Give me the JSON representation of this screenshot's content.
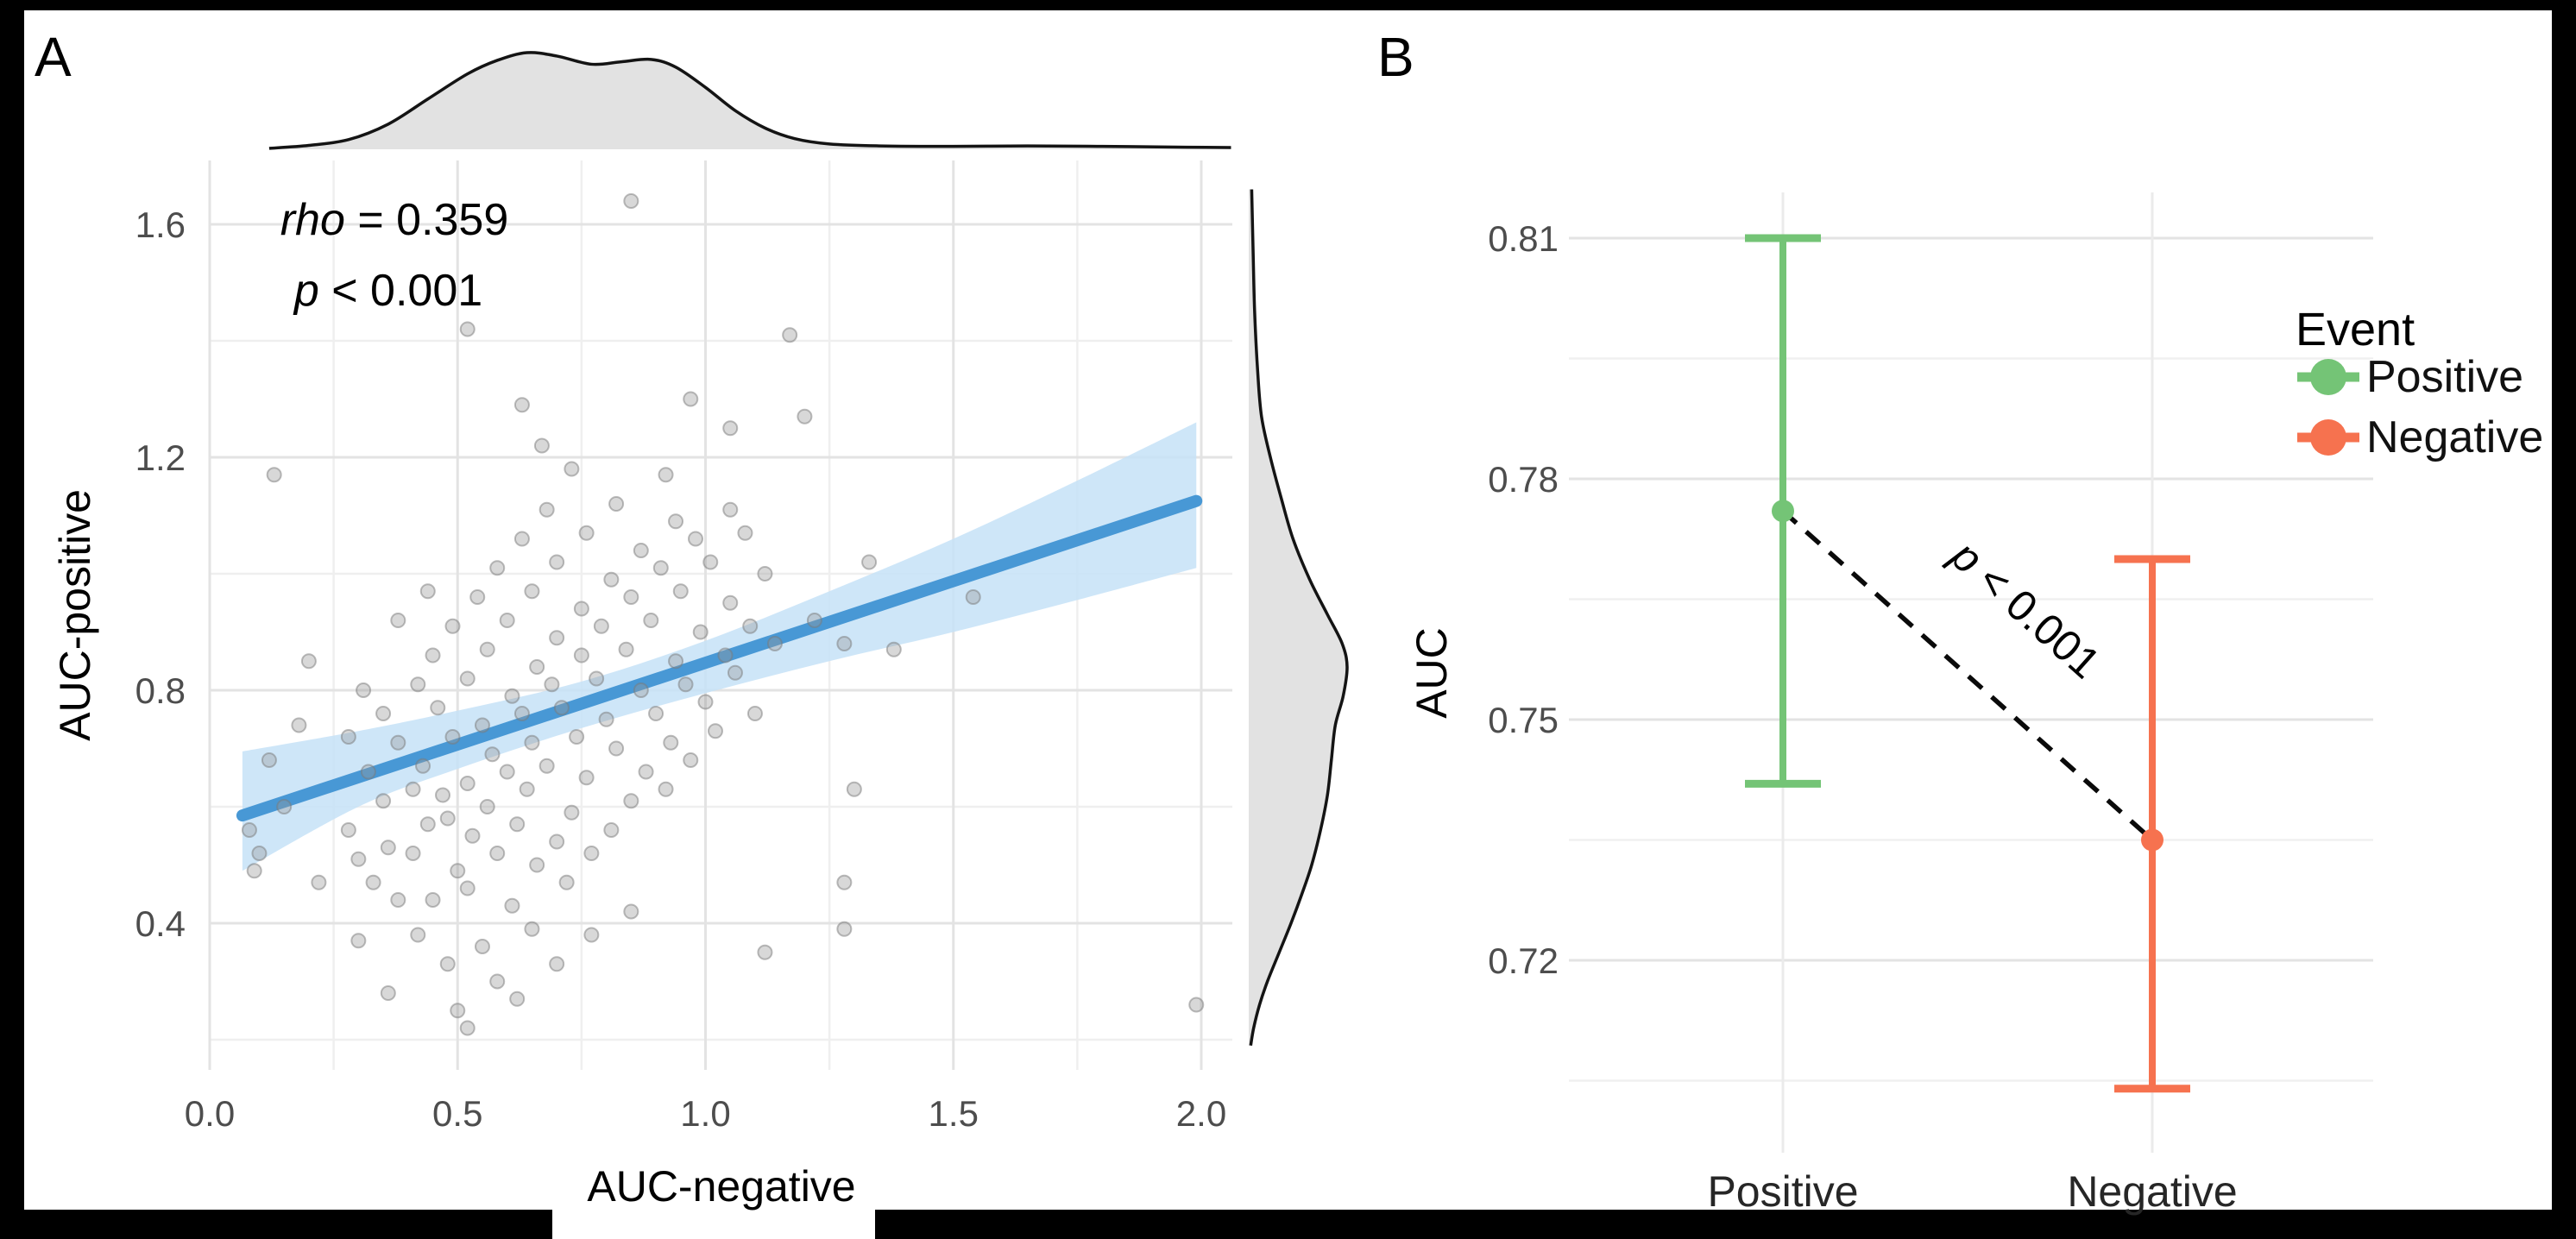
{
  "figure": {
    "background": "#ffffff",
    "frame_color": "#000000"
  },
  "chart_data": [
    {
      "panel_label": "A",
      "type": "scatter",
      "xlabel": "AUC-negative",
      "ylabel": "AUC-positive",
      "annotation": {
        "stat_italic": "rho",
        "stat_text": " = 0.359",
        "p_italic": "p",
        "p_text": " < 0.001"
      },
      "xlim": [
        0,
        2.06
      ],
      "ylim": [
        0.15,
        1.71
      ],
      "xticks": [
        0,
        0.5,
        1.0,
        1.5,
        2.0
      ],
      "xtick_labels": [
        "0.0",
        "0.5",
        "1.0",
        "1.5",
        "2.0"
      ],
      "xminor": [
        0.25,
        0.75,
        1.25,
        1.75
      ],
      "yticks": [
        0.4,
        0.8,
        1.2,
        1.6
      ],
      "ytick_labels": [
        "0.4",
        "0.8",
        "1.2",
        "1.6"
      ],
      "yminor": [
        0.2,
        0.6,
        1.0,
        1.4
      ],
      "grid": "on",
      "marginal_densities": "top and right, gray filled",
      "colors": {
        "point": "#999999",
        "point_stroke": "#7a7a7a",
        "line": "#4898D5",
        "band": "#C5E2F7",
        "density_fill": "#E0E0E0",
        "density_stroke": "#141414",
        "grid_major": "#E3E3E3",
        "grid_minor": "#EFEFEF"
      },
      "smooth": {
        "x": [
          0.066,
          1.99
        ],
        "y": [
          0.585,
          1.125
        ]
      },
      "band": {
        "x": [
          0.066,
          0.3,
          0.5,
          0.75,
          1.0,
          1.25,
          1.5,
          1.75,
          1.99
        ],
        "upper": [
          0.695,
          0.73,
          0.765,
          0.815,
          0.885,
          0.97,
          1.06,
          1.16,
          1.26
        ],
        "lower": [
          0.49,
          0.6,
          0.665,
          0.735,
          0.795,
          0.85,
          0.9,
          0.955,
          1.01
        ]
      },
      "x_density": [
        [
          0.12,
          0.01
        ],
        [
          0.2,
          0.04
        ],
        [
          0.28,
          0.1
        ],
        [
          0.36,
          0.26
        ],
        [
          0.44,
          0.52
        ],
        [
          0.52,
          0.78
        ],
        [
          0.58,
          0.92
        ],
        [
          0.64,
          1.0
        ],
        [
          0.7,
          0.965
        ],
        [
          0.77,
          0.88
        ],
        [
          0.83,
          0.905
        ],
        [
          0.89,
          0.93
        ],
        [
          0.94,
          0.85
        ],
        [
          1.0,
          0.64
        ],
        [
          1.06,
          0.4
        ],
        [
          1.12,
          0.22
        ],
        [
          1.18,
          0.11
        ],
        [
          1.25,
          0.055
        ],
        [
          1.35,
          0.035
        ],
        [
          1.5,
          0.03
        ],
        [
          1.65,
          0.035
        ],
        [
          1.8,
          0.03
        ],
        [
          1.95,
          0.022
        ],
        [
          2.06,
          0.018
        ]
      ],
      "y_density": [
        [
          1.66,
          0.03
        ],
        [
          1.55,
          0.045
        ],
        [
          1.45,
          0.06
        ],
        [
          1.35,
          0.09
        ],
        [
          1.27,
          0.13
        ],
        [
          1.2,
          0.22
        ],
        [
          1.13,
          0.33
        ],
        [
          1.06,
          0.45
        ],
        [
          0.99,
          0.62
        ],
        [
          0.93,
          0.8
        ],
        [
          0.88,
          0.95
        ],
        [
          0.84,
          1.0
        ],
        [
          0.79,
          0.96
        ],
        [
          0.74,
          0.88
        ],
        [
          0.68,
          0.84
        ],
        [
          0.62,
          0.8
        ],
        [
          0.56,
          0.73
        ],
        [
          0.5,
          0.64
        ],
        [
          0.45,
          0.54
        ],
        [
          0.4,
          0.43
        ],
        [
          0.35,
          0.31
        ],
        [
          0.3,
          0.19
        ],
        [
          0.26,
          0.11
        ],
        [
          0.22,
          0.05
        ],
        [
          0.19,
          0.02
        ]
      ],
      "points": [
        [
          0.38,
          0.44
        ],
        [
          0.52,
          0.46
        ],
        [
          0.61,
          0.43
        ],
        [
          0.72,
          0.47
        ],
        [
          0.33,
          0.47
        ],
        [
          0.45,
          0.44
        ],
        [
          0.3,
          0.51
        ],
        [
          0.41,
          0.52
        ],
        [
          0.5,
          0.49
        ],
        [
          0.58,
          0.52
        ],
        [
          0.66,
          0.5
        ],
        [
          0.77,
          0.52
        ],
        [
          0.36,
          0.53
        ],
        [
          0.28,
          0.56
        ],
        [
          0.44,
          0.57
        ],
        [
          0.53,
          0.55
        ],
        [
          0.62,
          0.57
        ],
        [
          0.7,
          0.54
        ],
        [
          0.81,
          0.56
        ],
        [
          0.48,
          0.58
        ],
        [
          0.35,
          0.61
        ],
        [
          0.47,
          0.62
        ],
        [
          0.56,
          0.6
        ],
        [
          0.64,
          0.63
        ],
        [
          0.73,
          0.59
        ],
        [
          0.85,
          0.61
        ],
        [
          0.92,
          0.63
        ],
        [
          0.41,
          0.63
        ],
        [
          0.32,
          0.66
        ],
        [
          0.43,
          0.67
        ],
        [
          0.52,
          0.64
        ],
        [
          0.6,
          0.66
        ],
        [
          0.68,
          0.67
        ],
        [
          0.76,
          0.65
        ],
        [
          0.88,
          0.66
        ],
        [
          0.97,
          0.68
        ],
        [
          0.38,
          0.71
        ],
        [
          0.49,
          0.72
        ],
        [
          0.57,
          0.69
        ],
        [
          0.65,
          0.71
        ],
        [
          0.74,
          0.72
        ],
        [
          0.82,
          0.7
        ],
        [
          0.93,
          0.71
        ],
        [
          1.02,
          0.73
        ],
        [
          0.28,
          0.72
        ],
        [
          0.35,
          0.76
        ],
        [
          0.46,
          0.77
        ],
        [
          0.55,
          0.74
        ],
        [
          0.63,
          0.76
        ],
        [
          0.71,
          0.77
        ],
        [
          0.8,
          0.75
        ],
        [
          0.9,
          0.76
        ],
        [
          1.0,
          0.78
        ],
        [
          1.1,
          0.76
        ],
        [
          0.42,
          0.81
        ],
        [
          0.52,
          0.82
        ],
        [
          0.61,
          0.79
        ],
        [
          0.69,
          0.81
        ],
        [
          0.78,
          0.82
        ],
        [
          0.87,
          0.8
        ],
        [
          0.96,
          0.81
        ],
        [
          1.06,
          0.83
        ],
        [
          0.31,
          0.8
        ],
        [
          0.45,
          0.86
        ],
        [
          0.56,
          0.87
        ],
        [
          0.66,
          0.84
        ],
        [
          0.75,
          0.86
        ],
        [
          0.84,
          0.87
        ],
        [
          0.94,
          0.85
        ],
        [
          1.04,
          0.86
        ],
        [
          1.14,
          0.88
        ],
        [
          0.49,
          0.91
        ],
        [
          0.6,
          0.92
        ],
        [
          0.7,
          0.89
        ],
        [
          0.79,
          0.91
        ],
        [
          0.89,
          0.92
        ],
        [
          0.99,
          0.9
        ],
        [
          1.09,
          0.91
        ],
        [
          0.38,
          0.92
        ],
        [
          0.54,
          0.96
        ],
        [
          0.65,
          0.97
        ],
        [
          0.75,
          0.94
        ],
        [
          0.85,
          0.96
        ],
        [
          0.95,
          0.97
        ],
        [
          1.05,
          0.95
        ],
        [
          0.44,
          0.97
        ],
        [
          0.58,
          1.01
        ],
        [
          0.7,
          1.02
        ],
        [
          0.81,
          0.99
        ],
        [
          0.91,
          1.01
        ],
        [
          1.01,
          1.02
        ],
        [
          1.12,
          1.0
        ],
        [
          0.63,
          1.06
        ],
        [
          0.76,
          1.07
        ],
        [
          0.87,
          1.04
        ],
        [
          0.98,
          1.06
        ],
        [
          1.08,
          1.07
        ],
        [
          0.68,
          1.11
        ],
        [
          0.82,
          1.12
        ],
        [
          0.94,
          1.09
        ],
        [
          1.05,
          1.11
        ],
        [
          0.63,
          1.29
        ],
        [
          0.67,
          1.22
        ],
        [
          0.73,
          1.18
        ],
        [
          0.97,
          1.3
        ],
        [
          1.05,
          1.25
        ],
        [
          0.92,
          1.17
        ],
        [
          0.52,
          1.42
        ],
        [
          0.85,
          1.64
        ],
        [
          1.17,
          1.41
        ],
        [
          1.2,
          1.27
        ],
        [
          0.13,
          1.17
        ],
        [
          0.42,
          0.38
        ],
        [
          0.55,
          0.36
        ],
        [
          0.65,
          0.39
        ],
        [
          0.48,
          0.33
        ],
        [
          0.58,
          0.3
        ],
        [
          0.36,
          0.28
        ],
        [
          0.5,
          0.25
        ],
        [
          0.62,
          0.27
        ],
        [
          0.7,
          0.33
        ],
        [
          0.3,
          0.37
        ],
        [
          0.77,
          0.38
        ],
        [
          0.85,
          0.42
        ],
        [
          0.52,
          0.22
        ],
        [
          0.1,
          0.52
        ],
        [
          0.15,
          0.6
        ],
        [
          0.12,
          0.68
        ],
        [
          0.18,
          0.74
        ],
        [
          0.22,
          0.47
        ],
        [
          0.2,
          0.85
        ],
        [
          0.08,
          0.56
        ],
        [
          0.09,
          0.49
        ],
        [
          1.22,
          0.92
        ],
        [
          1.28,
          0.88
        ],
        [
          1.33,
          1.02
        ],
        [
          1.38,
          0.87
        ],
        [
          1.54,
          0.96
        ],
        [
          1.99,
          0.26
        ],
        [
          1.28,
          0.47
        ],
        [
          1.28,
          0.39
        ],
        [
          1.12,
          0.35
        ],
        [
          1.3,
          0.63
        ]
      ]
    },
    {
      "panel_label": "B",
      "type": "pointrange",
      "ylabel": "AUC",
      "categories": [
        "Positive",
        "Negative"
      ],
      "series": [
        {
          "name": "Positive",
          "mean": 0.776,
          "lower": 0.742,
          "upper": 0.81,
          "color": "#74C476"
        },
        {
          "name": "Negative",
          "mean": 0.735,
          "lower": 0.704,
          "upper": 0.77,
          "color": "#F6724F"
        }
      ],
      "ylim": [
        0.696,
        0.816
      ],
      "yticks": [
        0.72,
        0.75,
        0.78,
        0.81
      ],
      "ytick_labels": [
        "0.72",
        "0.75",
        "0.78",
        "0.81"
      ],
      "yminor": [
        0.705,
        0.735,
        0.765,
        0.795
      ],
      "legend": {
        "title": "Event",
        "position": "right"
      },
      "sig": {
        "italic": "p",
        "text": " < 0.001"
      },
      "connector": "dashed black line between means",
      "colors": {
        "grid_major": "#E3E3E3",
        "grid_minor": "#F0F0F0",
        "grid_vertical": "#EBEBEB"
      }
    }
  ]
}
